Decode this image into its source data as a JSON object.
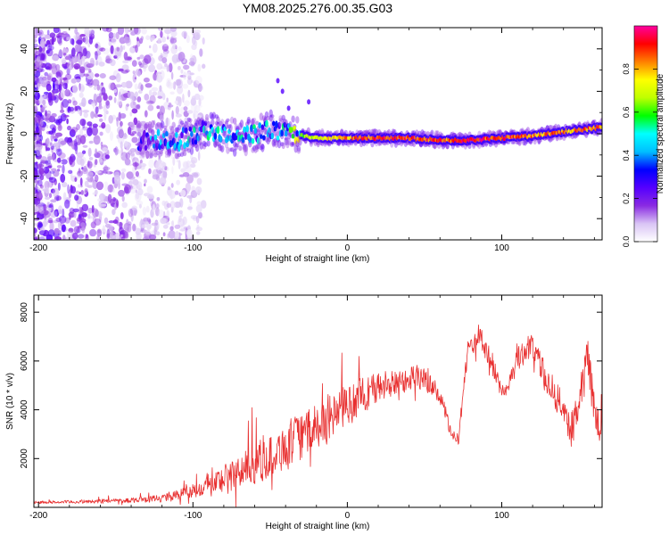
{
  "figure_title": "YM08.2025.276.00.35.G03",
  "chart_data": [
    {
      "type": "heatmap",
      "title": "YM08.2025.276.00.35.G03",
      "xlabel": "Height of straight line (km)",
      "ylabel": "Frequency (Hz)",
      "xlim": [
        -203,
        165
      ],
      "ylim": [
        -50,
        50
      ],
      "xticks": [
        -200,
        -100,
        0,
        100
      ],
      "yticks": [
        -40,
        -20,
        0,
        20,
        40
      ],
      "colorbar": {
        "label": "Normalized spectral amplitude",
        "range": [
          0,
          1
        ],
        "ticks": [
          0.0,
          0.2,
          0.4,
          0.6,
          0.8
        ],
        "tick_labels": [
          "0.0",
          "0.2",
          "0.4",
          "0.6",
          "0.8"
        ],
        "colormap": [
          "#ffffff",
          "#d9c4f5",
          "#8a2be2",
          "#5500ff",
          "#0000ff",
          "#00bfff",
          "#00ffff",
          "#00ff00",
          "#bfff00",
          "#ffff00",
          "#ff8000",
          "#ff0000",
          "#ff00a0"
        ]
      },
      "ridge": {
        "x": [
          -130,
          -110,
          -90,
          -70,
          -50,
          -35,
          -20,
          0,
          20,
          40,
          60,
          80,
          100,
          120,
          140,
          165
        ],
        "frequency": [
          -3,
          -3,
          2,
          -2,
          2,
          0,
          -2,
          -2,
          -2,
          -2,
          -3,
          -3,
          -2,
          -1,
          1,
          3
        ],
        "amplitude": [
          0.35,
          0.4,
          0.45,
          0.45,
          0.4,
          0.55,
          0.75,
          0.85,
          0.95,
          0.95,
          0.9,
          0.95,
          0.95,
          0.9,
          0.85,
          0.9
        ]
      }
    },
    {
      "type": "line",
      "xlabel": "Height of straight line (km)",
      "ylabel": "SNR (10 * v/v)",
      "xlim": [
        -203,
        165
      ],
      "ylim": [
        0,
        8700
      ],
      "xticks": [
        -200,
        -100,
        0,
        100
      ],
      "yticks": [
        2000,
        4000,
        6000,
        8000
      ],
      "series": [
        {
          "name": "SNR",
          "color": "#e83030",
          "x": [
            -203,
            -180,
            -160,
            -140,
            -120,
            -105,
            -90,
            -75,
            -60,
            -45,
            -30,
            -15,
            0,
            15,
            30,
            45,
            55,
            62,
            67,
            72,
            78,
            85,
            95,
            100,
            105,
            110,
            115,
            120,
            125,
            130,
            135,
            140,
            145,
            150,
            155,
            160,
            165
          ],
          "y": [
            200,
            220,
            250,
            300,
            380,
            600,
            900,
            1300,
            1800,
            2300,
            2900,
            3500,
            4200,
            4800,
            5100,
            5400,
            5000,
            4300,
            3000,
            2800,
            6500,
            7000,
            5800,
            4500,
            5200,
            6000,
            6400,
            6700,
            5800,
            5000,
            4600,
            4100,
            3200,
            4200,
            6600,
            4000,
            3200
          ],
          "noise_amplitude": [
            60,
            80,
            100,
            120,
            180,
            300,
            550,
            800,
            1000,
            1100,
            1200,
            1200,
            1000,
            900,
            700,
            600,
            500,
            400,
            300,
            300,
            500,
            600,
            600,
            500,
            500,
            600,
            600,
            700,
            700,
            700,
            700,
            800,
            900,
            1000,
            1200,
            1000,
            800
          ]
        }
      ]
    }
  ]
}
